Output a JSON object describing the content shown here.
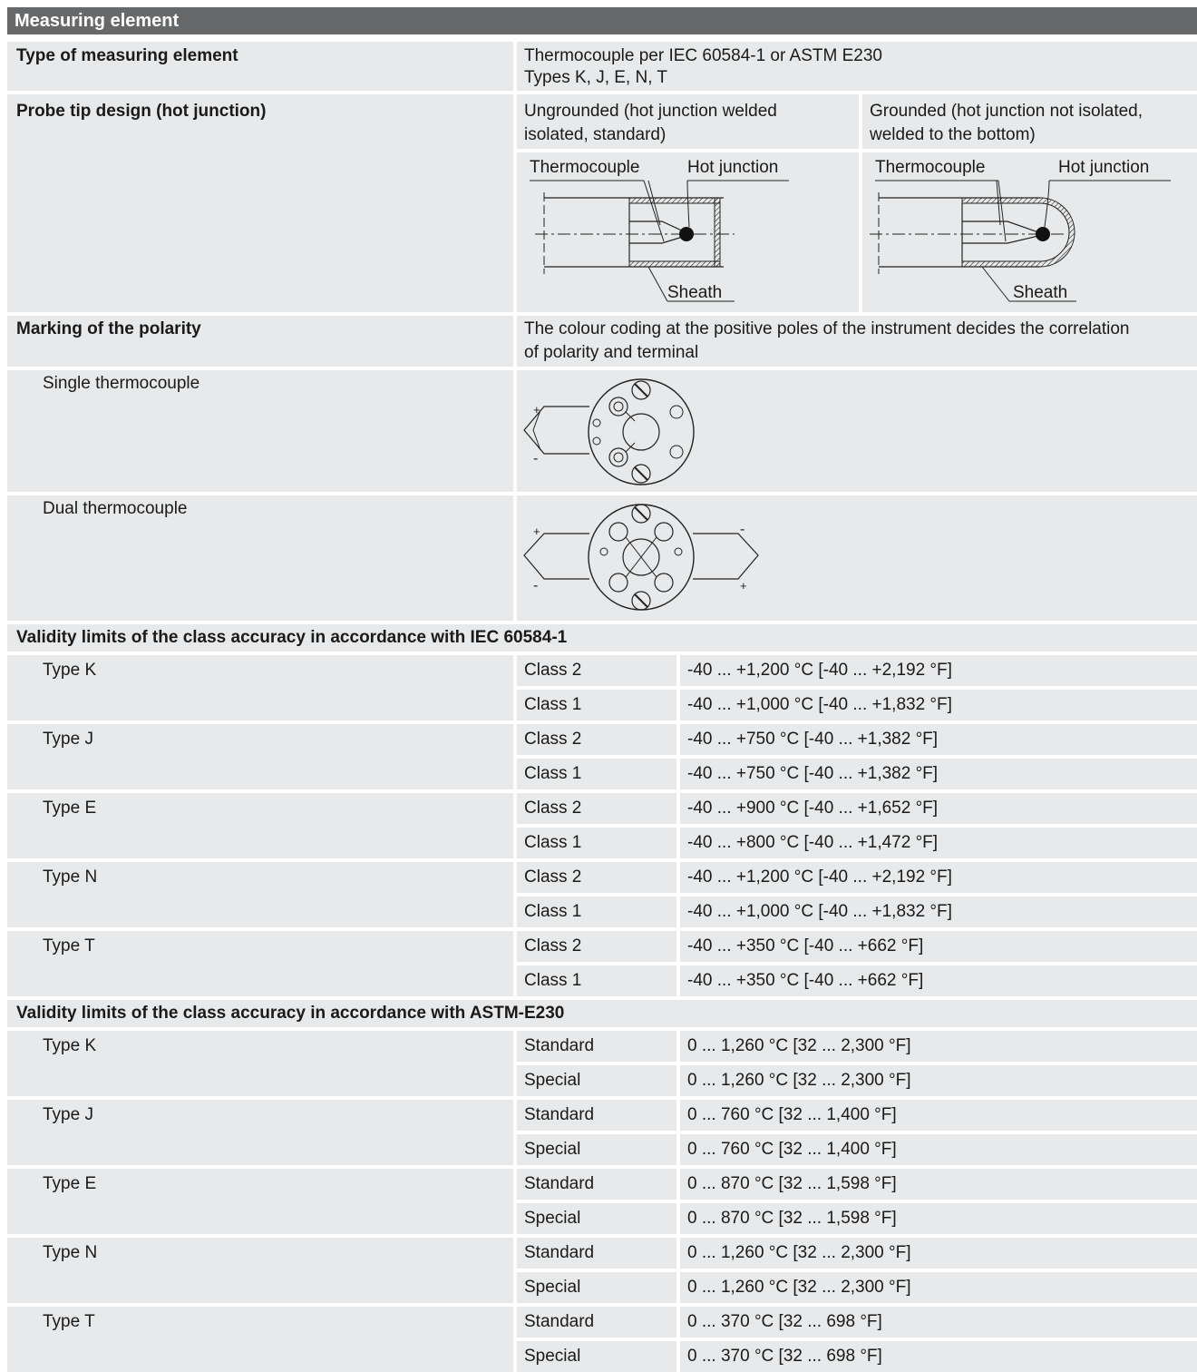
{
  "section_title": "Measuring element",
  "type_row": {
    "label": "Type of measuring element",
    "value_line1": "Thermocouple per IEC 60584-1 or ASTM E230",
    "value_line2": "Types K, J, E, N, T"
  },
  "probe_row": {
    "label": "Probe tip design (hot junction)",
    "ungrounded_line1": "Ungrounded (hot junction welded",
    "ungrounded_line2": "isolated, standard)",
    "grounded_line1": "Grounded (hot junction not isolated,",
    "grounded_line2": "welded to the bottom)",
    "fig_thermocouple": "Thermocouple",
    "fig_hot_junction": "Hot junction",
    "fig_sheath": "Sheath"
  },
  "polarity_row": {
    "label": "Marking of the polarity",
    "value_line1": "The colour coding at the positive poles of the instrument decides the correlation",
    "value_line2": "of polarity and terminal",
    "single": "Single thermocouple",
    "dual": "Dual thermocouple",
    "plus": "+",
    "minus": "-"
  },
  "iec": {
    "title": "Validity limits of the class accuracy in accordance with IEC 60584-1",
    "rows": [
      {
        "type": "Type K",
        "c1": "Class 2",
        "r1": "-40 ... +1,200 °C [-40 ... +2,192 °F]",
        "c2": "Class 1",
        "r2": "-40 ... +1,000 °C [-40 ... +1,832 °F]"
      },
      {
        "type": "Type J",
        "c1": "Class 2",
        "r1": "-40 ... +750 °C [-40 ... +1,382 °F]",
        "c2": "Class 1",
        "r2": "-40 ... +750 °C [-40 ... +1,382 °F]"
      },
      {
        "type": "Type E",
        "c1": "Class 2",
        "r1": "-40 ... +900 °C [-40 ... +1,652 °F]",
        "c2": "Class 1",
        "r2": "-40 ... +800 °C [-40 ... +1,472 °F]"
      },
      {
        "type": "Type N",
        "c1": "Class 2",
        "r1": "-40 ... +1,200 °C [-40 ... +2,192 °F]",
        "c2": "Class 1",
        "r2": "-40 ... +1,000 °C [-40 ... +1,832 °F]"
      },
      {
        "type": "Type T",
        "c1": "Class 2",
        "r1": "-40 ... +350 °C [-40 ... +662 °F]",
        "c2": "Class 1",
        "r2": "-40 ... +350 °C [-40 ... +662 °F]"
      }
    ]
  },
  "astm": {
    "title": "Validity limits of the class accuracy in accordance with ASTM-E230",
    "rows": [
      {
        "type": "Type K",
        "c1": "Standard",
        "r1": "0 ... 1,260 °C [32 ... 2,300 °F]",
        "c2": "Special",
        "r2": "0 ... 1,260 °C [32 ... 2,300 °F]"
      },
      {
        "type": "Type J",
        "c1": "Standard",
        "r1": "0 ... 760 °C [32 ... 1,400 °F]",
        "c2": "Special",
        "r2": "0 ... 760 °C [32 ... 1,400 °F]"
      },
      {
        "type": "Type E",
        "c1": "Standard",
        "r1": "0 ... 870 °C [32 ... 1,598 °F]",
        "c2": "Special",
        "r2": "0 ... 870 °C [32 ... 1,598 °F]"
      },
      {
        "type": "Type N",
        "c1": "Standard",
        "r1": "0 ... 1,260 °C [32 ... 2,300 °F]",
        "c2": "Special",
        "r2": "0 ... 1,260 °C [32 ... 2,300 °F]"
      },
      {
        "type": "Type T",
        "c1": "Standard",
        "r1": "0 ... 370 °C [32 ... 698 °F]",
        "c2": "Special",
        "r2": "0 ... 370 °C [32 ... 698 °F]"
      }
    ]
  }
}
